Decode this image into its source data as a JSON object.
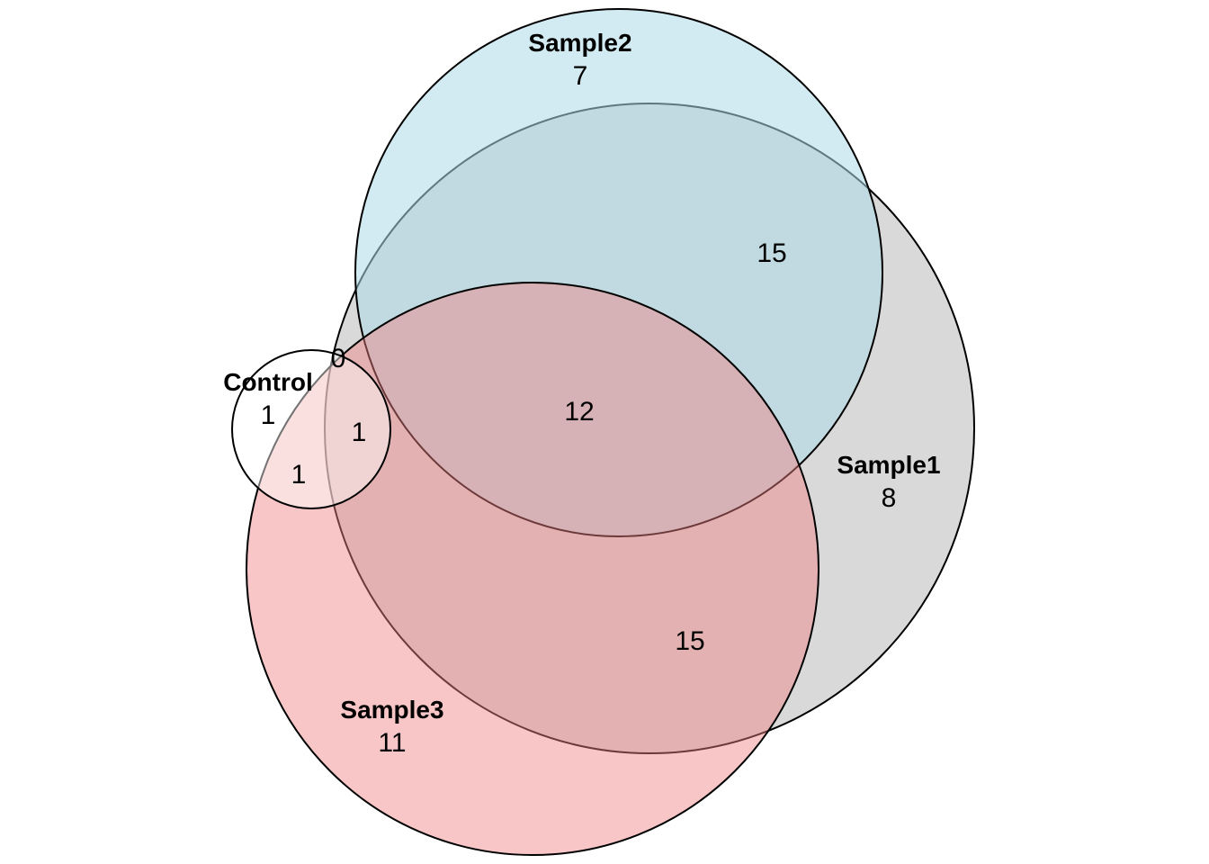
{
  "sets": {
    "sample1": {
      "name": "Sample1",
      "count": "8",
      "color": "#cccccc"
    },
    "sample2": {
      "name": "Sample2",
      "count": "7",
      "color": "#add8e6"
    },
    "sample3": {
      "name": "Sample3",
      "count": "11",
      "color": "#f08080"
    },
    "control": {
      "name": "Control",
      "count": "1",
      "color": "#ffffff"
    }
  },
  "regions": {
    "sample1_sample2": "15",
    "sample1_sample2_sample3": "12",
    "sample1_sample3": "15",
    "control_sample1_sample3": "1",
    "control_sample3": "1",
    "control_sample1_sample2_sample3": "0"
  },
  "colors": {
    "outline": "#000000",
    "background": "#ffffff"
  }
}
